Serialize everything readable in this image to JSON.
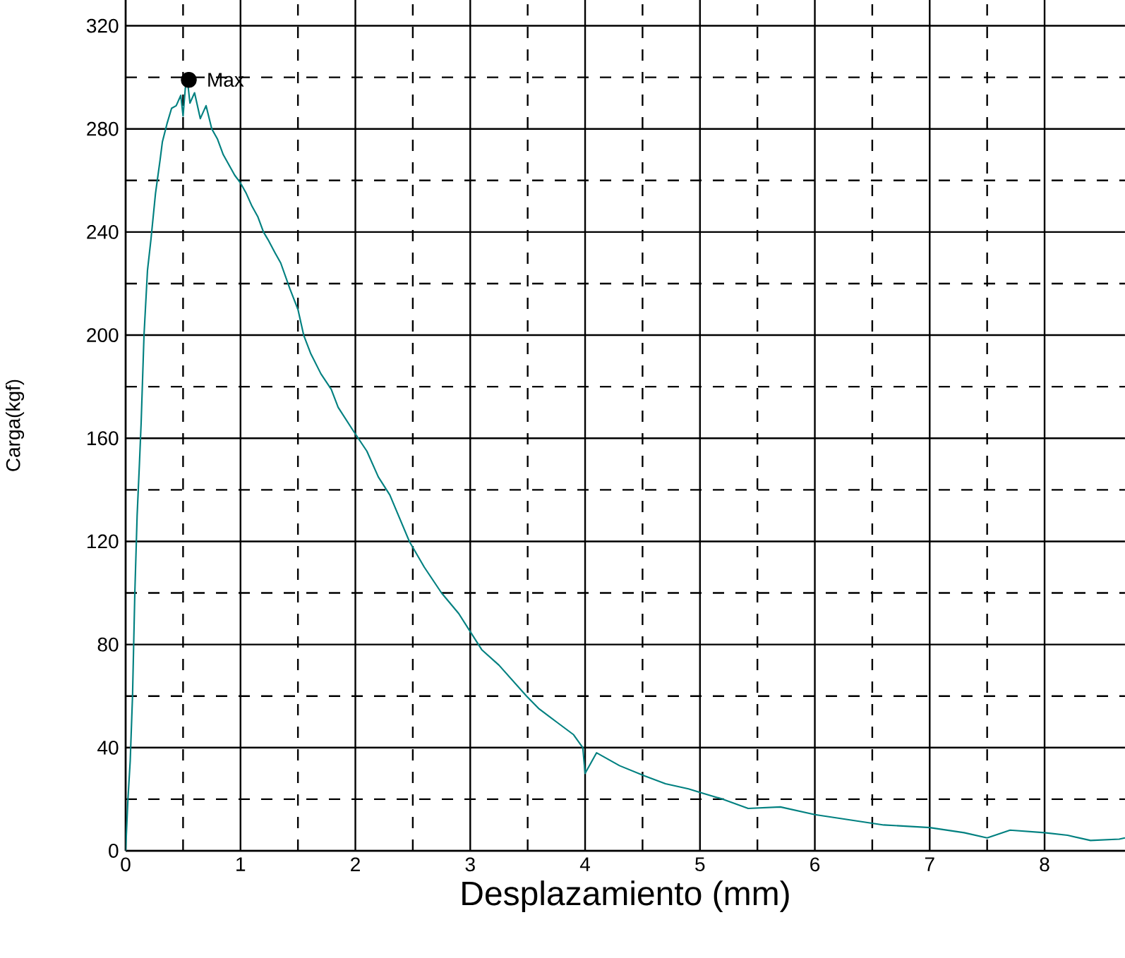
{
  "chart_data": {
    "type": "line",
    "xlabel": "Desplazamiento (mm)",
    "ylabel": "Carga(kgf)",
    "xlim": [
      0,
      8.7
    ],
    "ylim": [
      0,
      330
    ],
    "xticks": [
      0,
      1,
      2,
      3,
      4,
      5,
      6,
      7,
      8
    ],
    "yticks": [
      0,
      40,
      80,
      120,
      160,
      200,
      240,
      280,
      320
    ],
    "grid": true,
    "marker": "none",
    "line_style": "solid",
    "annotations": [
      {
        "text": "Max",
        "x": 0.55,
        "y": 299
      }
    ],
    "series": [
      {
        "color": "#008080",
        "x": [
          0,
          0.02,
          0.04,
          0.06,
          0.08,
          0.1,
          0.12,
          0.135,
          0.16,
          0.19,
          0.22,
          0.26,
          0.3,
          0.32,
          0.36,
          0.4,
          0.44,
          0.48,
          0.5,
          0.52,
          0.54,
          0.56,
          0.6,
          0.65,
          0.7,
          0.75,
          0.8,
          0.85,
          0.9,
          0.95,
          1.0,
          1.05,
          1.1,
          1.15,
          1.2,
          1.24,
          1.3,
          1.35,
          1.43,
          1.5,
          1.55,
          1.61,
          1.7,
          1.79,
          1.85,
          1.98,
          2.1,
          2.2,
          2.3,
          2.47,
          2.6,
          2.75,
          2.9,
          3.0,
          3.1,
          3.25,
          3.49,
          3.6,
          3.75,
          3.9,
          3.98,
          4.0,
          4.1,
          4.3,
          4.52,
          4.7,
          4.9,
          5.01,
          5.2,
          5.42,
          5.7,
          6.0,
          6.3,
          6.6,
          7.0,
          7.3,
          7.5,
          7.7,
          8.0,
          8.2,
          8.4,
          8.65,
          8.7
        ],
        "values": [
          0,
          20,
          35,
          60,
          100,
          130,
          150,
          166,
          200,
          225,
          237,
          255,
          268,
          275,
          282,
          288,
          289,
          293,
          285,
          296,
          298,
          290,
          294,
          284,
          289,
          280,
          276,
          270,
          266,
          262,
          259,
          255,
          250,
          246,
          240,
          237,
          232,
          228,
          218,
          210,
          200,
          193,
          185,
          179,
          172,
          163,
          155,
          145,
          138,
          120,
          110,
          100,
          92,
          85,
          78,
          72,
          60,
          55,
          50,
          45,
          40,
          30,
          38,
          33,
          29,
          26,
          24,
          22.5,
          20,
          16.4,
          17,
          14,
          12,
          10,
          9,
          7,
          5,
          8,
          7,
          6,
          4,
          4.5,
          5
        ]
      },
      {
        "type": "scatter",
        "color": "#000000",
        "marker": "circle",
        "x": [
          0.55
        ],
        "values": [
          299
        ]
      }
    ]
  }
}
